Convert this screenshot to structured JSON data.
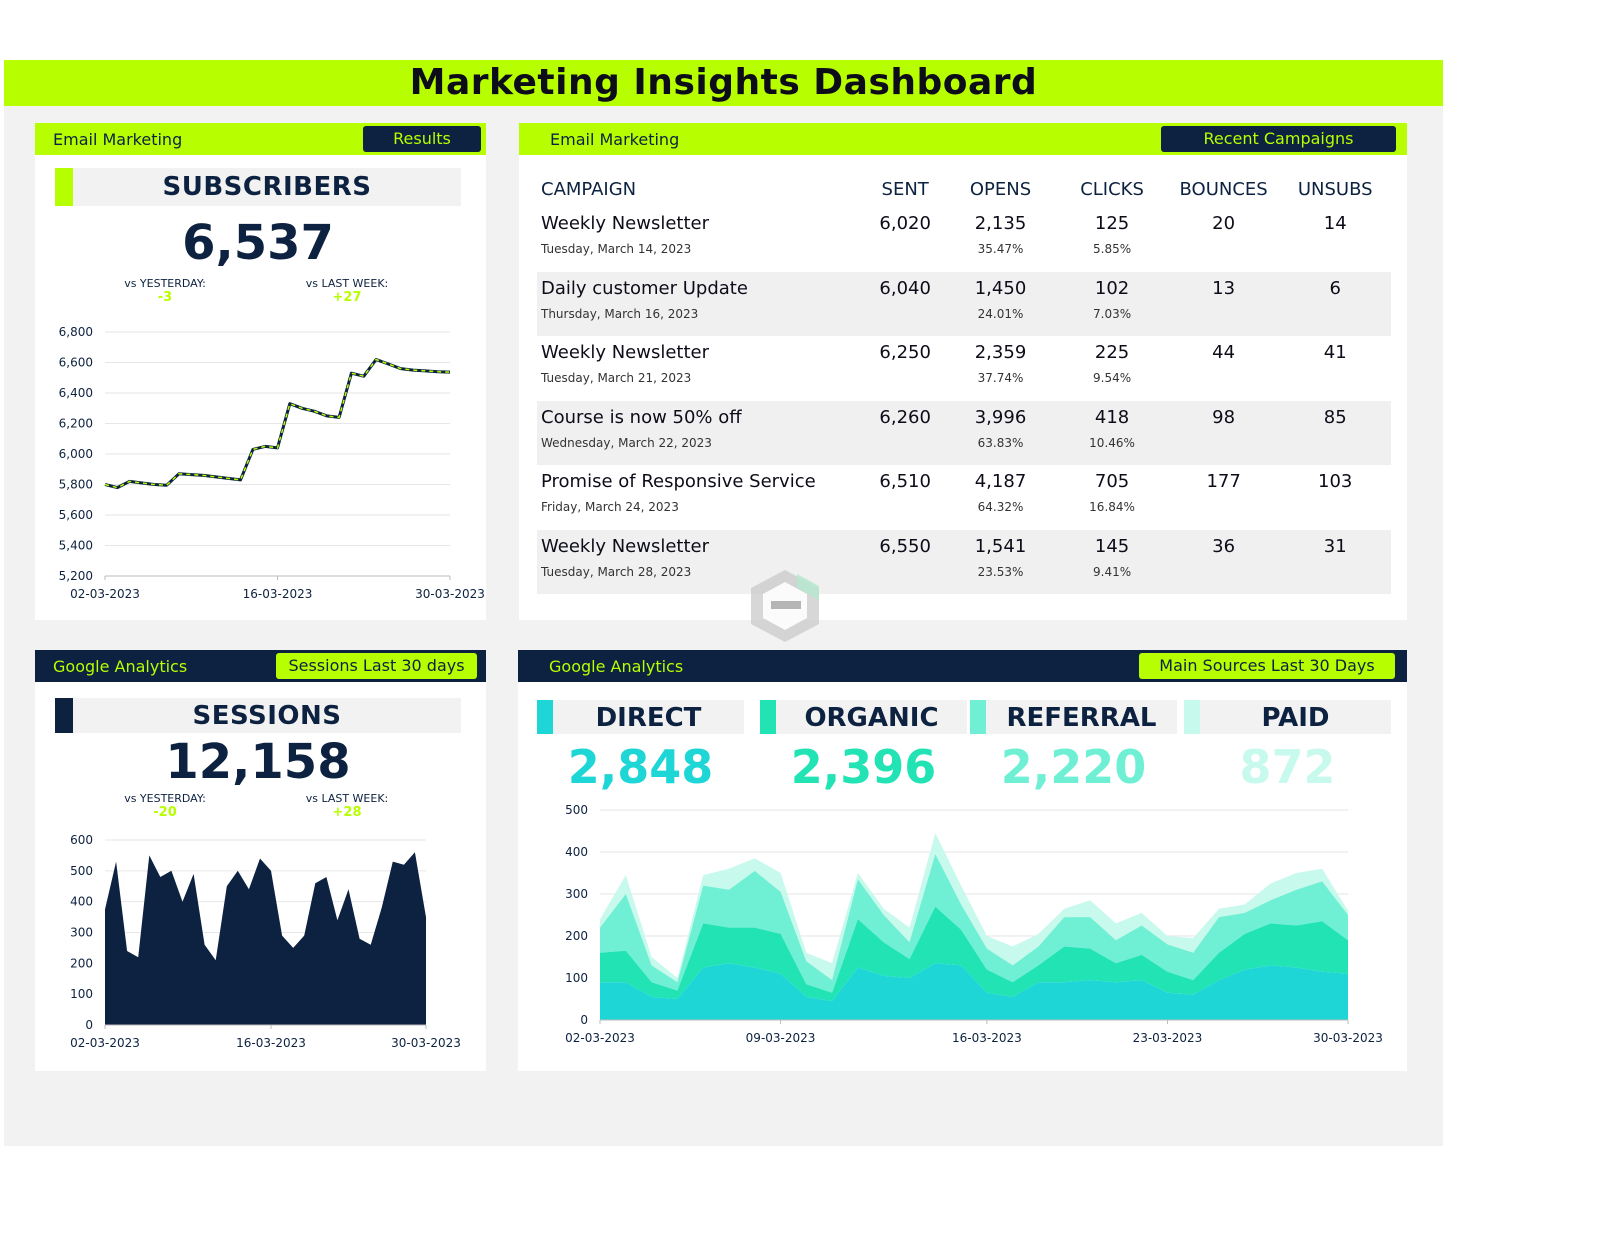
{
  "title": "Marketing Insights Dashboard",
  "colors": {
    "lime": "#b7ff00",
    "navy": "#0d2240",
    "direct": "#1fd6d6",
    "organic": "#22e3b4",
    "referral": "#6ff0d4",
    "paid": "#c7f9ec"
  },
  "subscribers_panel": {
    "header": "Email Marketing",
    "pill": "Results",
    "kpi_label": "SUBSCRIBERS",
    "kpi_value": "6,537",
    "vs_yesterday_label": "vs YESTERDAY:",
    "vs_yesterday_value": "-3",
    "vs_last_week_label": "vs LAST WEEK:",
    "vs_last_week_value": "+27"
  },
  "campaigns_panel": {
    "header": "Email Marketing",
    "pill": "Recent Campaigns",
    "columns": [
      "CAMPAIGN",
      "SENT",
      "OPENS",
      "CLICKS",
      "BOUNCES",
      "UNSUBS"
    ],
    "rows": [
      {
        "name": "Weekly Newsletter",
        "date": "Tuesday, March 14, 2023",
        "sent": "6,020",
        "opens": "2,135",
        "open_pct": "35.47%",
        "clicks": "125",
        "click_pct": "5.85%",
        "bounces": "20",
        "unsubs": "14"
      },
      {
        "name": "Daily customer Update",
        "date": "Thursday, March 16, 2023",
        "sent": "6,040",
        "opens": "1,450",
        "open_pct": "24.01%",
        "clicks": "102",
        "click_pct": "7.03%",
        "bounces": "13",
        "unsubs": "6"
      },
      {
        "name": "Weekly Newsletter",
        "date": "Tuesday, March 21, 2023",
        "sent": "6,250",
        "opens": "2,359",
        "open_pct": "37.74%",
        "clicks": "225",
        "click_pct": "9.54%",
        "bounces": "44",
        "unsubs": "41"
      },
      {
        "name": "Course is now 50% off",
        "date": "Wednesday, March 22, 2023",
        "sent": "6,260",
        "opens": "3,996",
        "open_pct": "63.83%",
        "clicks": "418",
        "click_pct": "10.46%",
        "bounces": "98",
        "unsubs": "85"
      },
      {
        "name": "Promise of Responsive Service",
        "date": "Friday, March 24, 2023",
        "sent": "6,510",
        "opens": "4,187",
        "open_pct": "64.32%",
        "clicks": "705",
        "click_pct": "16.84%",
        "bounces": "177",
        "unsubs": "103"
      },
      {
        "name": "Weekly Newsletter",
        "date": "Tuesday, March 28, 2023",
        "sent": "6,550",
        "opens": "1,541",
        "open_pct": "23.53%",
        "clicks": "145",
        "click_pct": "9.41%",
        "bounces": "36",
        "unsubs": "31"
      }
    ]
  },
  "sessions_panel": {
    "header": "Google Analytics",
    "pill": "Sessions Last 30 days",
    "kpi_label": "SESSIONS",
    "kpi_value": "12,158",
    "vs_yesterday_label": "vs YESTERDAY:",
    "vs_yesterday_value": "-20",
    "vs_last_week_label": "vs LAST WEEK:",
    "vs_last_week_value": "+28"
  },
  "sources_panel": {
    "header": "Google Analytics",
    "pill": "Main Sources Last 30 Days",
    "sources": [
      {
        "label": "DIRECT",
        "value": "2,848"
      },
      {
        "label": "ORGANIC",
        "value": "2,396"
      },
      {
        "label": "REFERRAL",
        "value": "2,220"
      },
      {
        "label": "PAID",
        "value": "872"
      }
    ]
  },
  "chart_data": [
    {
      "id": "subscribers",
      "type": "line",
      "x_tick_labels": [
        "02-03-2023",
        "16-03-2023",
        "30-03-2023"
      ],
      "ylim": [
        5200,
        6800
      ],
      "y_ticks": [
        5200,
        5400,
        5600,
        5800,
        6000,
        6200,
        6400,
        6600,
        6800
      ],
      "y_tick_labels": [
        "5,200",
        "5,400",
        "5,600",
        "5,800",
        "6,000",
        "6,200",
        "6,400",
        "6,600",
        "6,800"
      ],
      "values": [
        5800,
        5780,
        5820,
        5810,
        5800,
        5795,
        5870,
        5865,
        5860,
        5850,
        5840,
        5830,
        6030,
        6050,
        6040,
        6330,
        6300,
        6280,
        6250,
        6240,
        6530,
        6510,
        6620,
        6590,
        6560,
        6550,
        6545,
        6540,
        6537
      ]
    },
    {
      "id": "sessions",
      "type": "area",
      "x_tick_labels": [
        "02-03-2023",
        "16-03-2023",
        "30-03-2023"
      ],
      "ylim": [
        0,
        600
      ],
      "y_ticks": [
        0,
        100,
        200,
        300,
        400,
        500,
        600
      ],
      "y_tick_labels": [
        "0",
        "100",
        "200",
        "300",
        "400",
        "500",
        "600"
      ],
      "values": [
        375,
        530,
        240,
        220,
        550,
        480,
        500,
        400,
        490,
        260,
        210,
        450,
        500,
        440,
        540,
        500,
        290,
        250,
        290,
        460,
        480,
        340,
        440,
        280,
        260,
        380,
        530,
        520,
        560,
        350
      ]
    },
    {
      "id": "sources",
      "type": "area",
      "stacked": true,
      "x_tick_labels": [
        "02-03-2023",
        "09-03-2023",
        "16-03-2023",
        "23-03-2023",
        "30-03-2023"
      ],
      "ylim": [
        0,
        500
      ],
      "y_ticks": [
        0,
        100,
        200,
        300,
        400,
        500
      ],
      "y_tick_labels": [
        "0",
        "100",
        "200",
        "300",
        "400",
        "500"
      ],
      "series": [
        {
          "name": "DIRECT",
          "values": [
            90,
            90,
            55,
            50,
            125,
            135,
            125,
            110,
            55,
            45,
            125,
            105,
            100,
            135,
            130,
            65,
            55,
            90,
            90,
            95,
            90,
            95,
            65,
            60,
            95,
            120,
            130,
            125,
            115,
            110
          ]
        },
        {
          "name": "ORGANIC",
          "values": [
            70,
            75,
            35,
            20,
            105,
            85,
            95,
            95,
            30,
            20,
            115,
            80,
            45,
            135,
            85,
            55,
            35,
            40,
            85,
            75,
            45,
            60,
            50,
            35,
            65,
            85,
            100,
            100,
            120,
            80
          ]
        },
        {
          "name": "REFERRAL",
          "values": [
            60,
            135,
            40,
            20,
            90,
            90,
            135,
            100,
            55,
            30,
            95,
            65,
            40,
            125,
            60,
            50,
            40,
            45,
            70,
            75,
            55,
            70,
            65,
            65,
            85,
            50,
            55,
            85,
            95,
            60
          ]
        },
        {
          "name": "PAID",
          "values": [
            20,
            45,
            20,
            10,
            25,
            50,
            30,
            45,
            20,
            40,
            15,
            15,
            35,
            50,
            45,
            30,
            45,
            30,
            20,
            40,
            40,
            30,
            20,
            35,
            20,
            20,
            40,
            40,
            30,
            10
          ]
        }
      ]
    }
  ]
}
